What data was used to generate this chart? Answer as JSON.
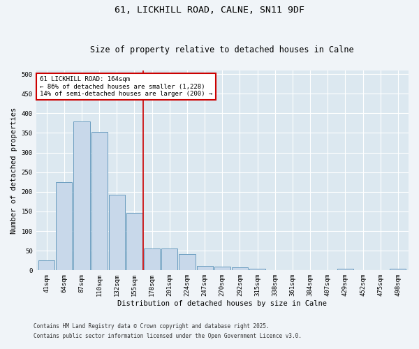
{
  "title1": "61, LICKHILL ROAD, CALNE, SN11 9DF",
  "title2": "Size of property relative to detached houses in Calne",
  "xlabel": "Distribution of detached houses by size in Calne",
  "ylabel": "Number of detached properties",
  "categories": [
    "41sqm",
    "64sqm",
    "87sqm",
    "110sqm",
    "132sqm",
    "155sqm",
    "178sqm",
    "201sqm",
    "224sqm",
    "247sqm",
    "270sqm",
    "292sqm",
    "315sqm",
    "338sqm",
    "361sqm",
    "384sqm",
    "407sqm",
    "429sqm",
    "452sqm",
    "475sqm",
    "498sqm"
  ],
  "values": [
    25,
    225,
    380,
    352,
    193,
    147,
    55,
    55,
    41,
    11,
    9,
    7,
    4,
    0,
    0,
    0,
    0,
    5,
    0,
    0,
    5
  ],
  "bar_color": "#c8d8ea",
  "bar_edge_color": "#6a9cbf",
  "vline_x_index": 5.5,
  "vline_color": "#cc0000",
  "annotation_line1": "61 LICKHILL ROAD: 164sqm",
  "annotation_line2": "← 86% of detached houses are smaller (1,228)",
  "annotation_line3": "14% of semi-detached houses are larger (200) →",
  "annotation_box_color": "#cc0000",
  "annotation_bg": "#ffffff",
  "ylim": [
    0,
    510
  ],
  "yticks": [
    0,
    50,
    100,
    150,
    200,
    250,
    300,
    350,
    400,
    450,
    500
  ],
  "plot_bg_color": "#dce8f0",
  "fig_bg_color": "#f0f4f8",
  "grid_color": "#ffffff",
  "footer1": "Contains HM Land Registry data © Crown copyright and database right 2025.",
  "footer2": "Contains public sector information licensed under the Open Government Licence v3.0.",
  "title1_fontsize": 9.5,
  "title2_fontsize": 8.5,
  "tick_fontsize": 6.5,
  "ylabel_fontsize": 7.5,
  "xlabel_fontsize": 7.5,
  "annot_fontsize": 6.5,
  "footer_fontsize": 5.5
}
